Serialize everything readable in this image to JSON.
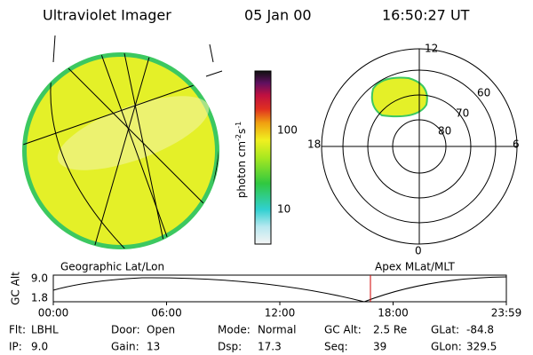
{
  "header": {
    "title": "Ultraviolet Imager",
    "date": "05 Jan 00",
    "time": "16:50:27 UT"
  },
  "colorbar": {
    "label": {
      "text": "photon cm",
      "exp1": "-2",
      "unit2": "s",
      "exp2": "-1"
    },
    "ticks": [
      "100",
      "10"
    ]
  },
  "polar": {
    "mlt_labels": [
      "12",
      "18",
      "6",
      "0"
    ],
    "lat_labels": [
      "60",
      "70",
      "80"
    ]
  },
  "projections": {
    "left": "Geographic Lat/Lon",
    "right": "Apex MLat/MLT"
  },
  "altitude_plot": {
    "axis_label": "GC Alt",
    "yticks": [
      "9.0",
      "1.8"
    ],
    "xticks": [
      "00:00",
      "06:00",
      "12:00",
      "18:00",
      "23:59"
    ]
  },
  "footer": {
    "rows": [
      [
        [
          "Flt:",
          "LBHL"
        ],
        [
          "Door:",
          "Open"
        ],
        [
          "Mode:",
          "Normal"
        ],
        [
          "GC Alt:",
          "2.5 Re"
        ],
        [
          "GLat:",
          "-84.8"
        ]
      ],
      [
        [
          "IP:",
          "9.0"
        ],
        [
          "Gain:",
          "13"
        ],
        [
          "Dsp:",
          "17.3"
        ],
        [
          "Seq:",
          "39"
        ],
        [
          "GLon:",
          "329.5"
        ]
      ]
    ]
  }
}
